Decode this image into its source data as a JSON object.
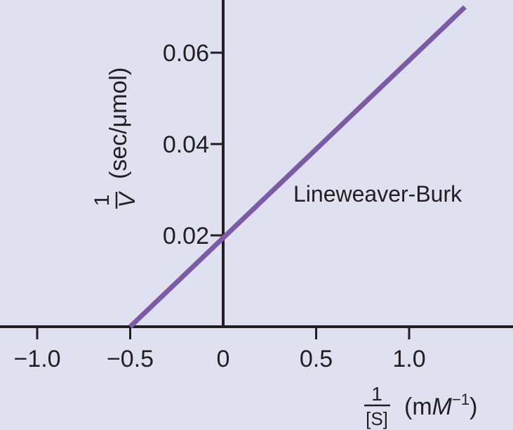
{
  "chart_data": {
    "type": "line",
    "x_ticks": [
      {
        "value": -1.0,
        "label": "−1.0"
      },
      {
        "value": -0.5,
        "label": "−0.5"
      },
      {
        "value": 0,
        "label": "0"
      },
      {
        "value": 0.5,
        "label": "0.5"
      },
      {
        "value": 1.0,
        "label": "1.0"
      }
    ],
    "y_ticks": [
      {
        "value": 0.02,
        "label": "0.02"
      },
      {
        "value": 0.04,
        "label": "0.04"
      },
      {
        "value": 0.06,
        "label": "0.06"
      }
    ],
    "xlim": [
      -1.1,
      1.45
    ],
    "ylim": [
      0,
      0.071
    ],
    "series": [
      {
        "name": "Lineweaver-Burk",
        "color": "#7b5aa6",
        "x": [
          -0.5,
          1.3
        ],
        "y": [
          0.0,
          0.07
        ]
      }
    ],
    "annotation": "Lineweaver-Burk",
    "xlabel": {
      "numerator": "1",
      "denominator": "[S]",
      "unit_prefix": "(m",
      "unit_symbol": "M",
      "unit_exponent": "−1",
      "unit_suffix": ")"
    },
    "ylabel": {
      "numerator": "1",
      "denominator": "V",
      "unit": "(sec/μmol)"
    },
    "grid": false,
    "background": "#dfe0f0",
    "axis_color": "#231f20"
  }
}
